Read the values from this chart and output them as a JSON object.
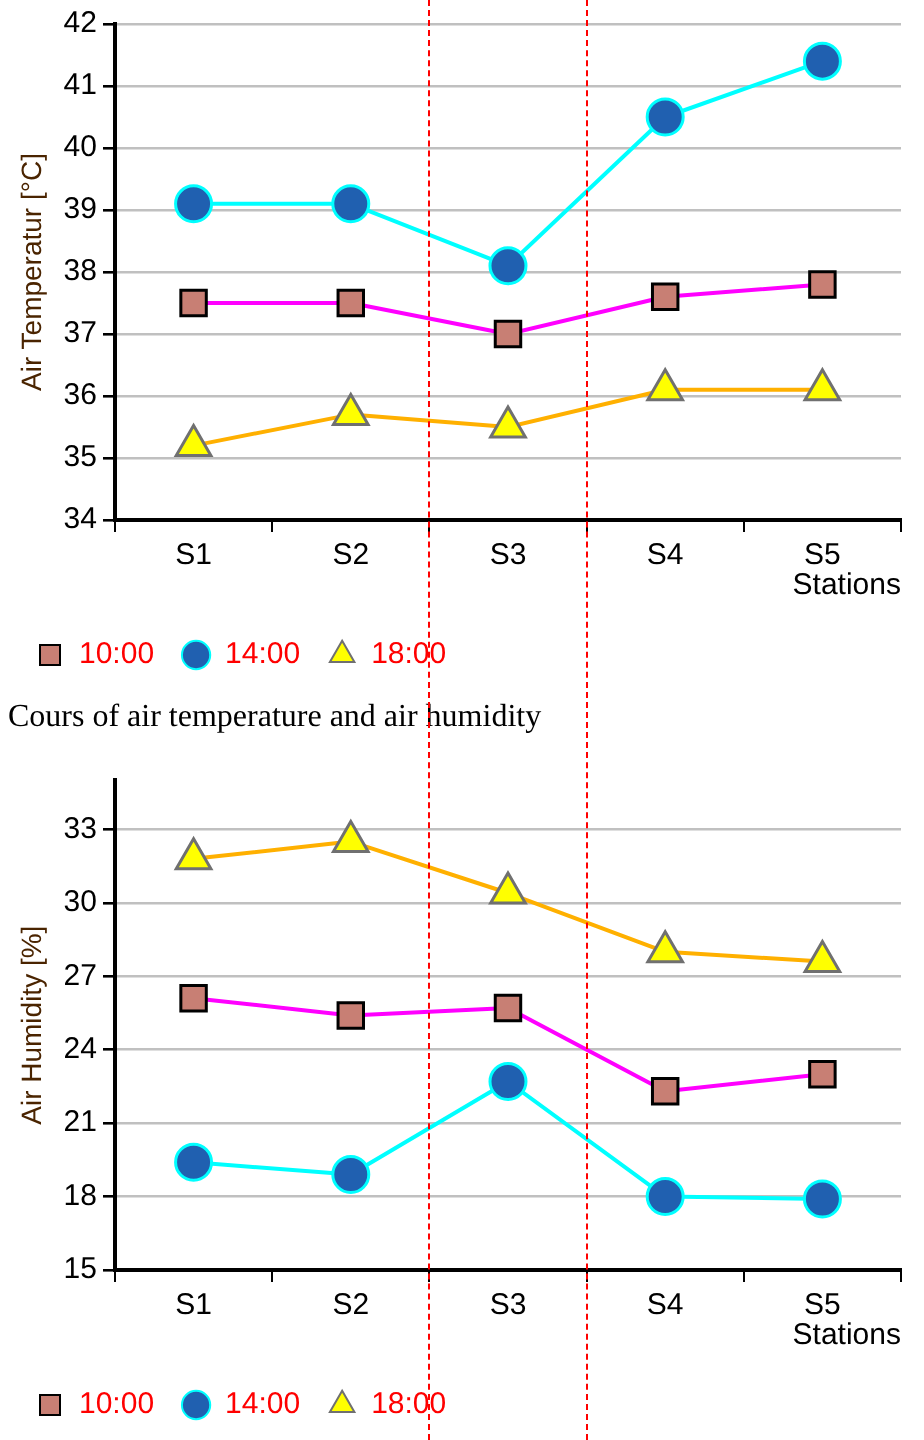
{
  "chart_data": [
    {
      "type": "line",
      "ylabel": "Air Temperatur [°C]",
      "xlabel": "Stations",
      "categories": [
        "S1",
        "S2",
        "S3",
        "S4",
        "S5"
      ],
      "ylim": [
        34,
        42
      ],
      "yticks": [
        34,
        35,
        36,
        37,
        38,
        39,
        40,
        41,
        42
      ],
      "grid": "y",
      "legend": "bottom",
      "series": [
        {
          "name": "10:00",
          "color": "#ff00ff",
          "marker": "square",
          "colors": [
            "#c87f74",
            "#c87f74",
            "#c87f74",
            "#c87f74",
            "#c87f74"
          ],
          "values": [
            37.5,
            37.5,
            37.0,
            37.6,
            37.8
          ]
        },
        {
          "name": "14:00",
          "color": "#00ffff",
          "marker": "circle",
          "colors": [
            "#2060b0",
            "#2060b0",
            "#2060b0",
            "#2060b0",
            "#2060b0"
          ],
          "values": [
            39.1,
            39.1,
            38.1,
            40.5,
            41.4
          ]
        },
        {
          "name": "18:00",
          "color": "#ffb000",
          "marker": "triangle",
          "colors": [
            "#ffff00",
            "#ffff00",
            "#ffff00",
            "#ffff00",
            "#ffff00"
          ],
          "values": [
            35.2,
            35.7,
            35.5,
            36.1,
            36.1
          ]
        }
      ]
    },
    {
      "type": "line",
      "title": "Cours of air temperature and air humidity",
      "ylabel": "Air Humidity [%]",
      "xlabel": "Stations",
      "categories": [
        "S1",
        "S2",
        "S3",
        "S4",
        "S5"
      ],
      "ylim": [
        15,
        35
      ],
      "yticks": [
        15,
        18,
        21,
        24,
        27,
        30,
        33
      ],
      "grid": "y",
      "legend": "bottom",
      "series": [
        {
          "name": "10:00",
          "color": "#ff00ff",
          "marker": "square",
          "colors": [
            "#c87f74",
            "#c87f74",
            "#c87f74",
            "#c87f74",
            "#c87f74"
          ],
          "values": [
            26.1,
            25.4,
            25.7,
            22.3,
            23.0
          ]
        },
        {
          "name": "14:00",
          "color": "#00ffff",
          "marker": "circle",
          "colors": [
            "#2060b0",
            "#2060b0",
            "#2060b0",
            "#2060b0",
            "#2060b0"
          ],
          "values": [
            19.4,
            18.9,
            22.7,
            18.0,
            17.9
          ]
        },
        {
          "name": "18:00",
          "color": "#ffb000",
          "marker": "triangle",
          "colors": [
            "#ffff00",
            "#ffff00",
            "#ffff00",
            "#ffff00",
            "#ffff00"
          ],
          "values": [
            31.8,
            32.5,
            30.4,
            28.0,
            27.6
          ]
        }
      ]
    }
  ]
}
